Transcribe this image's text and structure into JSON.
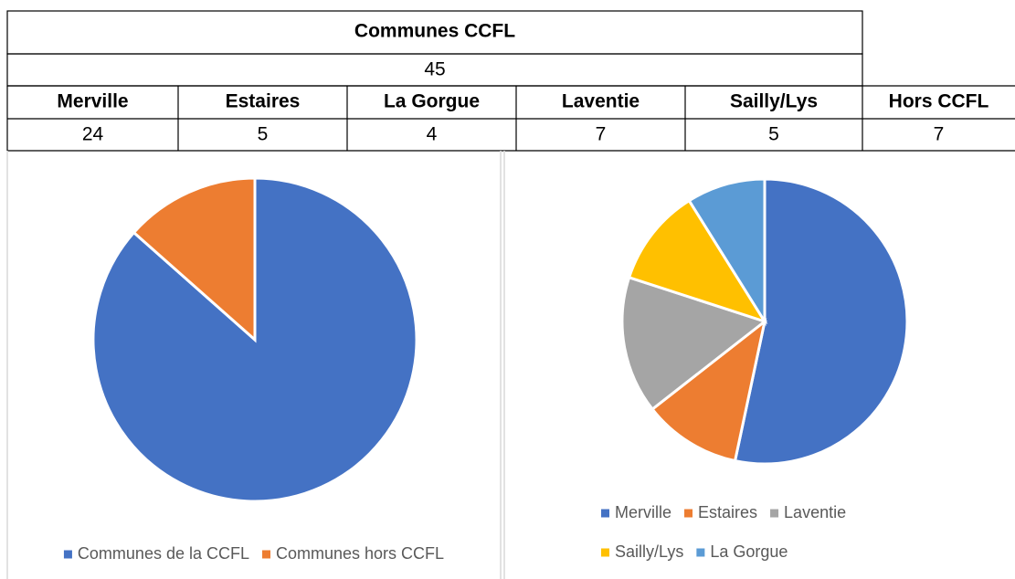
{
  "table": {
    "title": "Communes CCFL",
    "total": "45",
    "headers": [
      "Merville",
      "Estaires",
      "La Gorgue",
      "Laventie",
      "Sailly/Lys",
      "Hors CCFL"
    ],
    "values": [
      "24",
      "5",
      "4",
      "7",
      "5",
      "7"
    ]
  },
  "chart_data": [
    {
      "type": "pie",
      "categories": [
        "Communes de la CCFL",
        "Communes hors CCFL"
      ],
      "values": [
        45,
        7
      ],
      "colors": [
        "#4472c4",
        "#ed7d31"
      ],
      "legend": "bottom"
    },
    {
      "type": "pie",
      "categories": [
        "Merville",
        "Estaires",
        "Laventie",
        "Sailly/Lys",
        "La Gorgue"
      ],
      "values": [
        24,
        5,
        7,
        5,
        4
      ],
      "colors": [
        "#4472c4",
        "#ed7d31",
        "#a5a5a5",
        "#ffc000",
        "#5b9bd5"
      ],
      "legend": "bottom"
    }
  ]
}
